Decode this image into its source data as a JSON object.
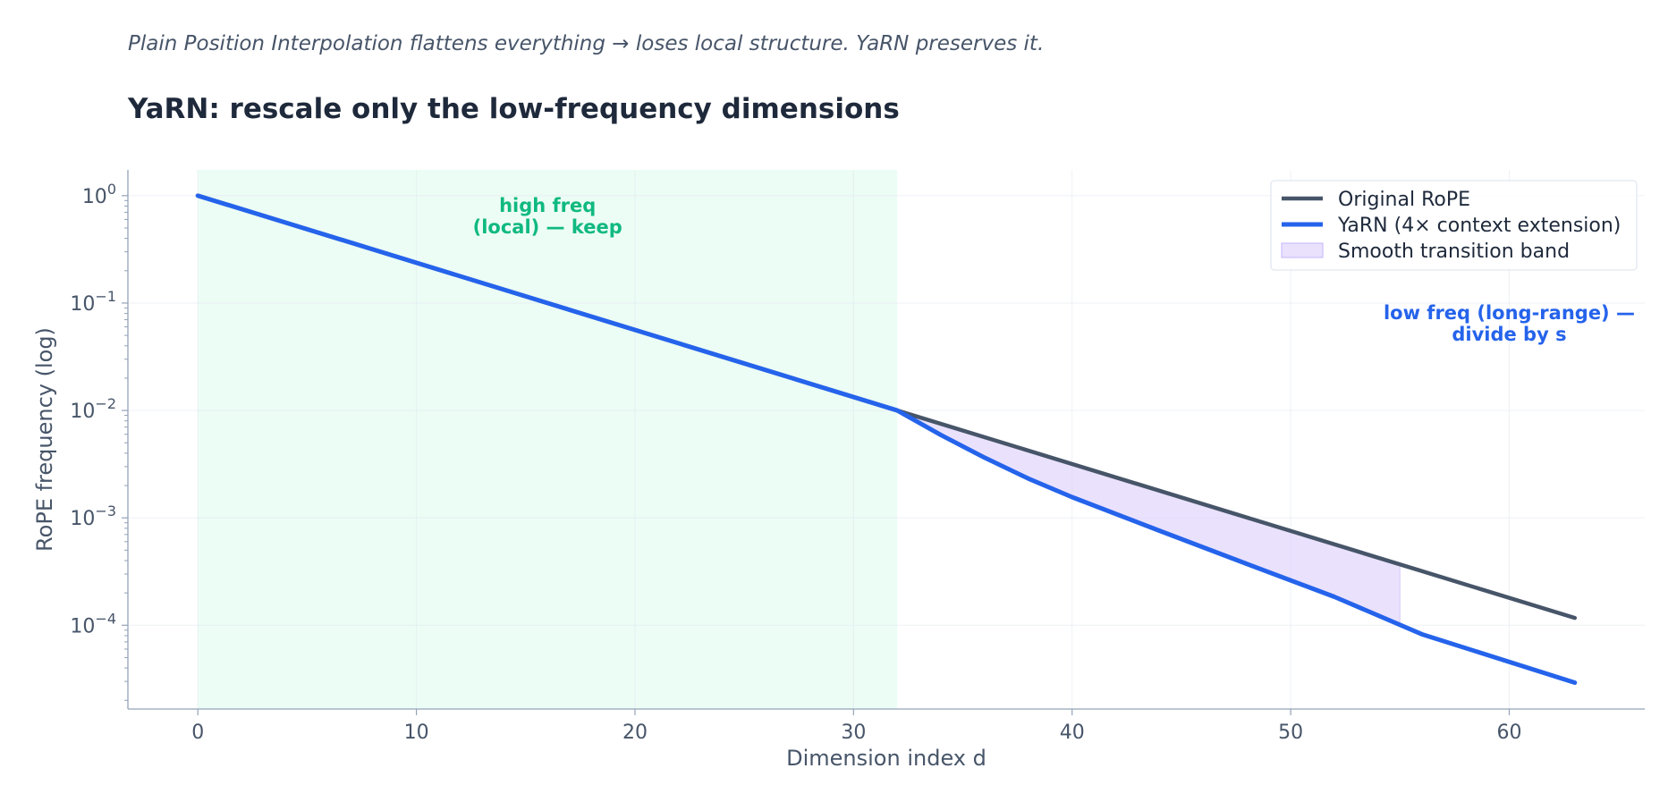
{
  "header": {
    "subtitle": "Plain Position Interpolation flattens everything → loses local structure. YaRN preserves it.",
    "title": "YaRN: rescale only the low-frequency dimensions"
  },
  "chart_data": {
    "type": "line",
    "title": "YaRN: rescale only the low-frequency dimensions",
    "subtitle": "Plain Position Interpolation flattens everything → loses local structure. YaRN preserves it.",
    "xlabel": "Dimension index d",
    "ylabel": "RoPE frequency (log)",
    "xlim": [
      -3.2,
      66.2
    ],
    "ylim_log10": [
      -4.78,
      0.24
    ],
    "yscale": "log",
    "x_ticks": [
      0,
      10,
      20,
      30,
      40,
      50,
      60
    ],
    "x_tick_labels": [
      "0",
      "10",
      "20",
      "30",
      "40",
      "50",
      "60"
    ],
    "y_ticks_exponent": [
      0,
      -1,
      -2,
      -3,
      -4
    ],
    "y_tick_base": "10",
    "grid": true,
    "legend_position": "top-right",
    "series": [
      {
        "name": "Original RoPE",
        "color": "#475569",
        "x": [
          0,
          32,
          63
        ],
        "y": [
          1.0,
          0.01,
          0.000117
        ]
      },
      {
        "name": "YaRN (4× context extension)",
        "color": "#2563eb",
        "x": [
          0,
          32,
          34,
          36,
          38,
          40,
          44,
          48,
          52,
          56,
          63
        ],
        "y": [
          1.0,
          0.01,
          0.0059,
          0.00363,
          0.00232,
          0.00156,
          0.000758,
          0.000372,
          0.000184,
          8.25e-05,
          2.92e-05
        ]
      }
    ],
    "bands": [
      {
        "name": "high freq (local) band",
        "x_range": [
          0,
          32
        ],
        "color": "#ecfdf5"
      }
    ],
    "fill_between": {
      "name": "Smooth transition band",
      "x_range": [
        32,
        55
      ],
      "color": "#d8c8fb"
    },
    "annotations": [
      {
        "lines": [
          "high freq",
          "(local) — keep"
        ],
        "x": 16,
        "y_log10": -0.15,
        "color": "#10b981"
      },
      {
        "lines": [
          "low freq (long-range) —",
          "divide by s"
        ],
        "x": 60,
        "y_log10": -1.15,
        "color": "#2563eb"
      }
    ]
  }
}
